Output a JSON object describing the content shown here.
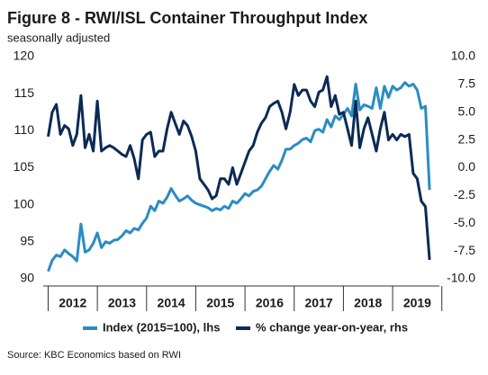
{
  "chart_data": {
    "type": "line",
    "title": "Figure 8 - RWI/ISL Container Throughput Index",
    "subtitle": "seasonally adjusted",
    "source": "Source: KBC Economics based on RWI",
    "x": [
      2012,
      2012.083,
      2012.167,
      2012.25,
      2012.333,
      2012.417,
      2012.5,
      2012.583,
      2012.667,
      2012.75,
      2012.833,
      2012.917,
      2013,
      2013.083,
      2013.167,
      2013.25,
      2013.333,
      2013.417,
      2013.5,
      2013.583,
      2013.667,
      2013.75,
      2013.833,
      2013.917,
      2014,
      2014.083,
      2014.167,
      2014.25,
      2014.333,
      2014.417,
      2014.5,
      2014.583,
      2014.667,
      2014.75,
      2014.833,
      2014.917,
      2015,
      2015.083,
      2015.167,
      2015.25,
      2015.333,
      2015.417,
      2015.5,
      2015.583,
      2015.667,
      2015.75,
      2015.833,
      2015.917,
      2016,
      2016.083,
      2016.167,
      2016.25,
      2016.333,
      2016.417,
      2016.5,
      2016.583,
      2016.667,
      2016.75,
      2016.833,
      2016.917,
      2017,
      2017.083,
      2017.167,
      2017.25,
      2017.333,
      2017.417,
      2017.5,
      2017.583,
      2017.667,
      2017.75,
      2017.833,
      2017.917,
      2018,
      2018.083,
      2018.167,
      2018.25,
      2018.333,
      2018.417,
      2018.5,
      2018.583,
      2018.667,
      2018.75,
      2018.833,
      2018.917,
      2019,
      2019.083,
      2019.167,
      2019.25,
      2019.333,
      2019.417,
      2019.5,
      2019.583,
      2019.667,
      2019.75
    ],
    "series": [
      {
        "name": "Index (2015=100), lhs",
        "color": "#2b8cc4",
        "axis": "y",
        "values": [
          91.0,
          92.5,
          93.2,
          93.0,
          93.9,
          93.4,
          93.0,
          92.4,
          97.4,
          93.6,
          93.9,
          94.8,
          96.2,
          94.2,
          95.0,
          94.8,
          95.2,
          95.3,
          95.8,
          96.5,
          96.2,
          96.8,
          96.6,
          97.5,
          98.2,
          99.8,
          99.2,
          100.5,
          100.2,
          101.0,
          102.2,
          101.3,
          100.5,
          100.8,
          101.2,
          100.6,
          100.2,
          100.0,
          99.8,
          99.6,
          99.2,
          99.5,
          99.3,
          99.8,
          99.5,
          100.5,
          100.2,
          100.8,
          101.5,
          101.2,
          101.8,
          102.0,
          102.5,
          103.5,
          104.5,
          105.3,
          104.8,
          106.0,
          107.5,
          107.5,
          108.0,
          108.3,
          108.8,
          109.0,
          108.5,
          110.0,
          110.2,
          109.8,
          111.5,
          110.5,
          112.0,
          111.5,
          112.2,
          113.0,
          112.0,
          116.3,
          112.8,
          113.5,
          113.3,
          113.0,
          115.8,
          113.0,
          116.0,
          114.5,
          116.0,
          115.5,
          115.8,
          116.5,
          116.0,
          116.3,
          115.5,
          113.0,
          113.3,
          102.0
        ]
      },
      {
        "name": "% change year-on-year, rhs",
        "color": "#0b2a55",
        "axis": "y2",
        "values": [
          2.8,
          5.0,
          5.7,
          3.0,
          3.8,
          3.5,
          2.0,
          3.0,
          6.5,
          1.8,
          3.0,
          1.5,
          6.0,
          1.5,
          1.8,
          2.0,
          1.8,
          1.5,
          1.2,
          1.0,
          2.0,
          0.8,
          -1.0,
          2.5,
          3.0,
          3.2,
          1.0,
          1.5,
          1.5,
          3.5,
          5.0,
          4.0,
          3.0,
          4.2,
          3.8,
          2.8,
          1.5,
          -1.0,
          -1.5,
          -2.0,
          -2.8,
          -2.5,
          -1.0,
          -1.0,
          -1.5,
          0.0,
          -1.5,
          -0.5,
          0.5,
          1.5,
          2.0,
          3.2,
          4.0,
          4.5,
          5.5,
          5.8,
          6.0,
          5.0,
          3.5,
          5.0,
          7.5,
          6.5,
          7.0,
          7.0,
          6.0,
          5.5,
          6.8,
          7.0,
          8.2,
          5.5,
          6.5,
          4.8,
          5.0,
          3.5,
          2.0,
          6.0,
          1.8,
          3.5,
          4.5,
          3.0,
          1.5,
          3.5,
          5.0,
          2.5,
          3.0,
          2.5,
          3.0,
          2.8,
          3.0,
          -0.5,
          -1.0,
          -3.0,
          -3.5,
          -8.3
        ]
      }
    ],
    "xlim": [
      2011.9,
      2019.95
    ],
    "xticks": [
      {
        "value": 2012.5,
        "label": "2012"
      },
      {
        "value": 2013.5,
        "label": "2013"
      },
      {
        "value": 2014.5,
        "label": "2014"
      },
      {
        "value": 2015.5,
        "label": "2015"
      },
      {
        "value": 2016.5,
        "label": "2016"
      },
      {
        "value": 2017.5,
        "label": "2017"
      },
      {
        "value": 2018.5,
        "label": "2018"
      },
      {
        "value": 2019.5,
        "label": "2019"
      }
    ],
    "ylim": [
      90,
      120
    ],
    "yticks": [
      90,
      95,
      100,
      105,
      110,
      115,
      120
    ],
    "y2lim": [
      -10,
      10
    ],
    "y2ticks": [
      {
        "value": -10,
        "label": "-10.0"
      },
      -7.5,
      {
        "value": -5,
        "label": "-5.0"
      },
      -2.5,
      {
        "value": 0,
        "label": "0.0"
      },
      2.5,
      {
        "value": 5,
        "label": "5.0"
      },
      7.5,
      {
        "value": 10,
        "label": "10.0"
      }
    ],
    "grid": false,
    "legend": "bottom"
  }
}
